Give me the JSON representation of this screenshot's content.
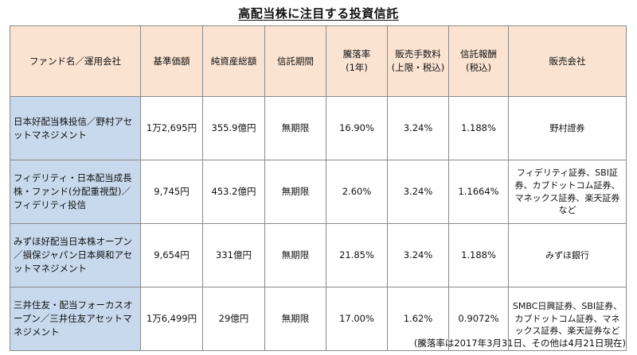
{
  "title": "高配当株に注目する投資信託",
  "headers": {
    "fund": "ファンド名／運用会社",
    "nav": "基準価額",
    "net_assets": "純資産総額",
    "term": "信託期間",
    "return_line1": "騰落率",
    "return_line2": "(1年)",
    "sales_fee_line1": "販売手数料",
    "sales_fee_line2": "(上限・税込)",
    "trust_fee_line1": "信託報酬",
    "trust_fee_line2": "(税込)",
    "sellers": "販売会社"
  },
  "rows": [
    {
      "fund": "日本好配当株投信／野村アセットマネジメント",
      "nav": "1万2,695円",
      "net_assets": "355.9億円",
      "term": "無期限",
      "return": "16.90%",
      "sales_fee": "3.24%",
      "trust_fee": "1.188%",
      "sellers": "野村證券"
    },
    {
      "fund": "フィデリティ・日本配当成長株・ファンド(分配重視型)／フィデリティ投信",
      "nav": "9,745円",
      "net_assets": "453.2億円",
      "term": "無期限",
      "return": "2.60%",
      "sales_fee": "3.24%",
      "trust_fee": "1.1664%",
      "sellers": "フィデリティ証券、SBI証券、カブドットコム証券、マネックス証券、楽天証券など"
    },
    {
      "fund": "みずほ好配当日本株オープン／損保ジャパン日本興和アセットマネジメント",
      "nav": "9,654円",
      "net_assets": "331億円",
      "term": "無期限",
      "return": "21.85%",
      "sales_fee": "3.24%",
      "trust_fee": "1.188%",
      "sellers": "みずほ銀行"
    },
    {
      "fund": "三井住友・配当フォーカスオープン／三井住友アセットマネジメント",
      "nav": "1万6,499円",
      "net_assets": "29億円",
      "term": "無期限",
      "return": "17.00%",
      "sales_fee": "1.62%",
      "trust_fee": "0.9072%",
      "sellers": "SMBC日興証券、SBI証券、カブドットコム証券、マネックス証券、楽天証券など"
    }
  ],
  "note": "(騰落率は2017年3月31日、その他は4月21日現在)",
  "colors": {
    "header_bg": "#fbe3d1",
    "fund_cell_bg": "#c8d9ee",
    "border": "#8a8a8a"
  }
}
